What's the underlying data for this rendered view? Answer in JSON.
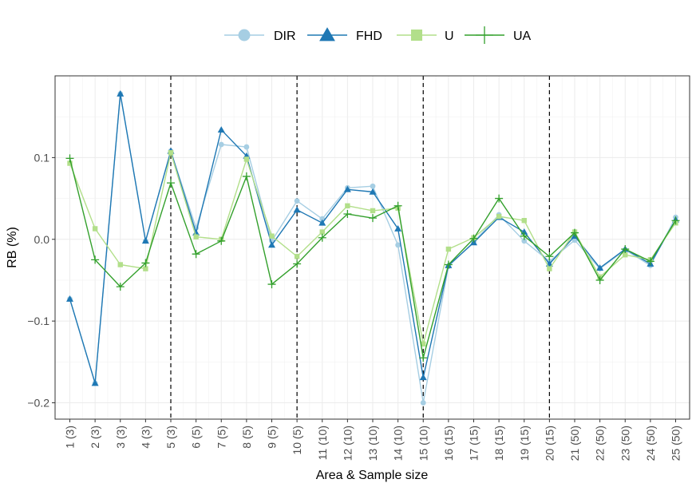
{
  "chart_data": {
    "type": "line",
    "xlabel": "Area & Sample size",
    "ylabel": "RB (%)",
    "ylim": [
      -0.22,
      0.2
    ],
    "yticks": [
      -0.2,
      -0.1,
      0.0,
      0.1
    ],
    "ytick_labels": [
      "−0.2",
      "−0.1",
      "0.0",
      "0.1"
    ],
    "grid": true,
    "legend_position": "top",
    "categories": [
      "1 (3)",
      "2 (3)",
      "3 (3)",
      "4 (3)",
      "5 (3)",
      "6 (5)",
      "7 (5)",
      "8 (5)",
      "9 (5)",
      "10 (5)",
      "11 (10)",
      "12 (10)",
      "13 (10)",
      "14 (10)",
      "15 (10)",
      "16 (15)",
      "17 (15)",
      "18 (15)",
      "19 (15)",
      "20 (15)",
      "21 (50)",
      "22 (50)",
      "23 (50)",
      "24 (50)",
      "25 (50)"
    ],
    "vlines_after_category": [
      "5 (3)",
      "10 (5)",
      "15 (10)",
      "20 (15)"
    ],
    "series": [
      {
        "name": "DIR",
        "color": "#a6cee3",
        "marker": "circle",
        "values": [
          -0.073,
          -0.176,
          0.178,
          -0.002,
          0.108,
          0.014,
          0.116,
          0.113,
          -0.002,
          0.047,
          0.025,
          0.063,
          0.065,
          -0.007,
          -0.2,
          -0.033,
          -0.003,
          0.03,
          -0.002,
          -0.027,
          -0.001,
          -0.036,
          -0.013,
          -0.032,
          0.027
        ]
      },
      {
        "name": "FHD",
        "color": "#1f78b4",
        "marker": "triangle",
        "values": [
          -0.073,
          -0.176,
          0.178,
          -0.002,
          0.108,
          0.008,
          0.134,
          0.102,
          -0.007,
          0.036,
          0.02,
          0.061,
          0.058,
          0.013,
          -0.169,
          -0.032,
          -0.004,
          0.027,
          0.009,
          -0.03,
          0.004,
          -0.035,
          -0.012,
          -0.03,
          0.024
        ]
      },
      {
        "name": "U",
        "color": "#b2df8a",
        "marker": "square",
        "values": [
          0.093,
          0.013,
          -0.031,
          -0.036,
          0.106,
          0.003,
          0.0,
          0.098,
          0.004,
          -0.021,
          0.009,
          0.041,
          0.035,
          0.038,
          -0.128,
          -0.012,
          0.002,
          0.028,
          0.023,
          -0.036,
          0.009,
          -0.046,
          -0.019,
          -0.025,
          0.02
        ]
      },
      {
        "name": "UA",
        "color": "#33a02c",
        "marker": "plus",
        "values": [
          0.099,
          -0.025,
          -0.058,
          -0.029,
          0.069,
          -0.018,
          -0.002,
          0.077,
          -0.055,
          -0.03,
          0.002,
          0.031,
          0.026,
          0.041,
          -0.145,
          -0.031,
          0.001,
          0.05,
          0.004,
          -0.021,
          0.008,
          -0.05,
          -0.012,
          -0.027,
          0.023
        ]
      }
    ]
  }
}
